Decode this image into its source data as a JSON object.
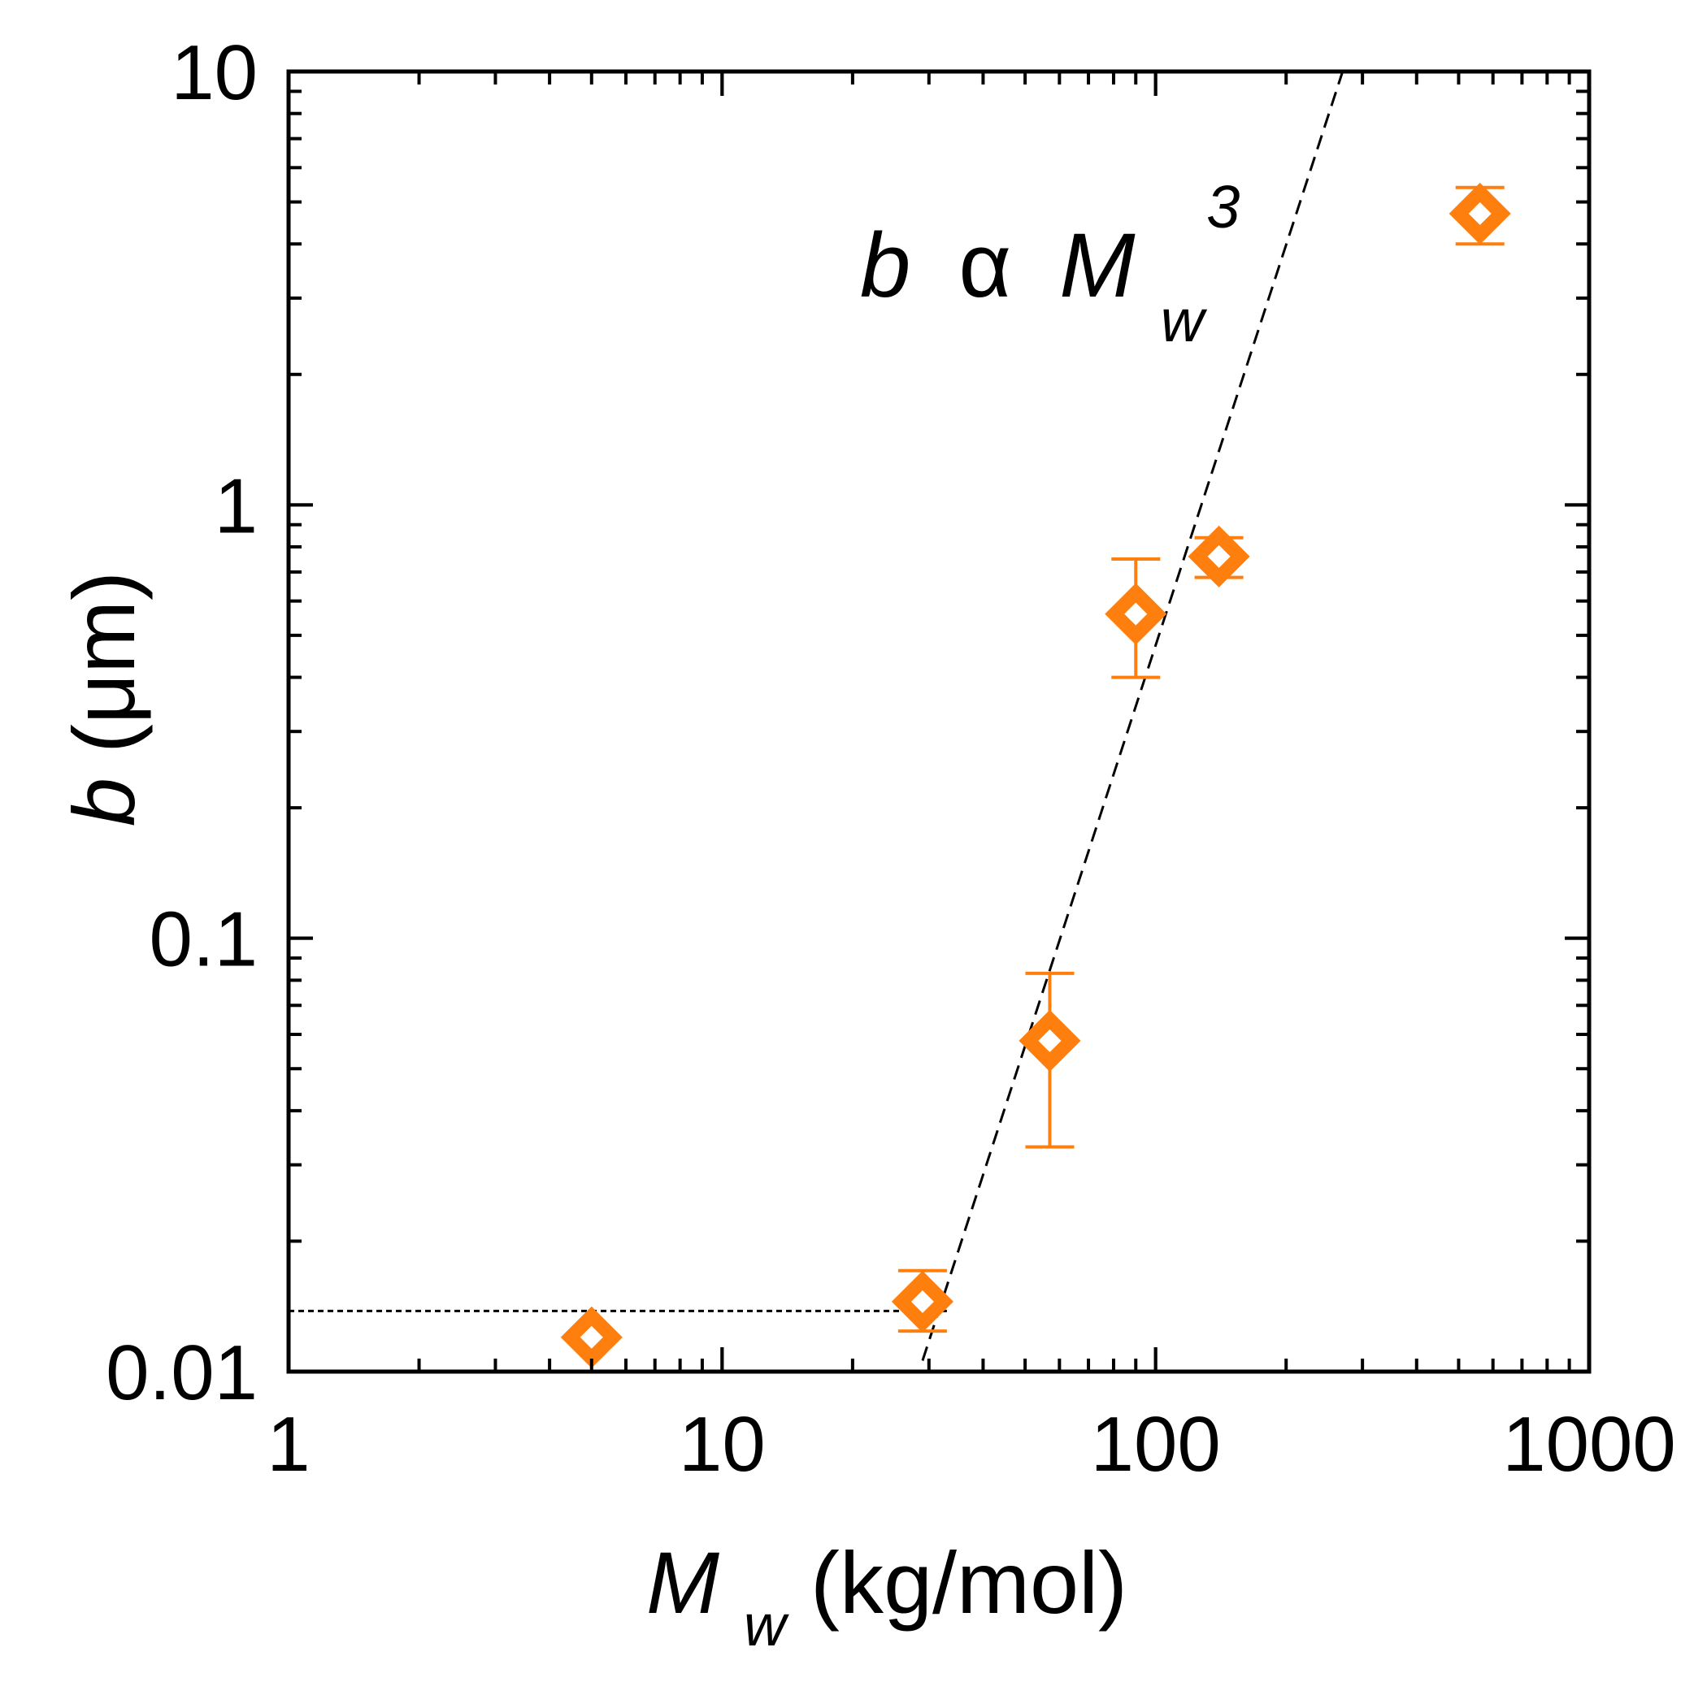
{
  "chart_data": {
    "type": "scatter",
    "xscale": "log",
    "yscale": "log",
    "xlim": [
      1,
      1000
    ],
    "ylim": [
      0.01,
      10
    ],
    "x_tick_labels": [
      "1",
      "10",
      "100",
      "1000"
    ],
    "y_tick_labels": [
      "0.01",
      "0.1",
      "1",
      "10"
    ],
    "xlabel": {
      "main": "M",
      "sub": "w",
      "rest": " (kg/mol)"
    },
    "ylabel": {
      "italic": "b",
      "rest": " (μm)"
    },
    "annotation": {
      "b": "b",
      "alpha": "α",
      "M": "M",
      "sub": "w",
      "sup": "3"
    },
    "colors": {
      "markers": "#ff7f0e",
      "axes": "#000000",
      "fit": "#000000"
    },
    "series": [
      {
        "points": [
          {
            "x": 5,
            "y": 0.012,
            "ylo": 0.012,
            "yhi": 0.012
          },
          {
            "x": 29,
            "y": 0.0145,
            "ylo": 0.0124,
            "yhi": 0.0171
          },
          {
            "x": 57,
            "y": 0.058,
            "ylo": 0.033,
            "yhi": 0.083
          },
          {
            "x": 90,
            "y": 0.56,
            "ylo": 0.4,
            "yhi": 0.75
          },
          {
            "x": 140,
            "y": 0.76,
            "ylo": 0.68,
            "yhi": 0.84
          },
          {
            "x": 560,
            "y": 4.7,
            "ylo": 4.0,
            "yhi": 5.4
          }
        ]
      }
    ],
    "fit_lines": [
      {
        "style": "dotted",
        "x": [
          1,
          33
        ],
        "y": [
          0.0138,
          0.0138
        ]
      },
      {
        "style": "dashed",
        "x": [
          29,
          270
        ],
        "y": [
          0.0106,
          10
        ]
      }
    ]
  }
}
